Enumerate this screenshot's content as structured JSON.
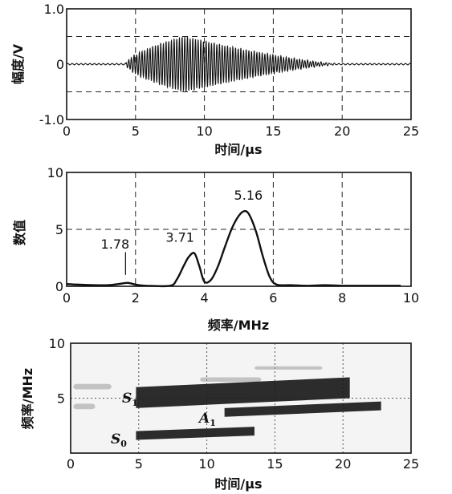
{
  "chart_data": [
    {
      "type": "line",
      "name_hint": "waveform",
      "xlabel": "时间/μs",
      "ylabel": "幅度/V",
      "xlim": [
        0,
        25
      ],
      "ylim": [
        -1.0,
        1.0
      ],
      "xticks": [
        "0",
        "5",
        "10",
        "15",
        "20",
        "25"
      ],
      "yticks": [
        "1.0",
        "0",
        "-1.0"
      ],
      "grid": "dashed",
      "signal": {
        "description_values": "oscillating burst around 0 V",
        "start": 4.3,
        "end": 19.8,
        "peak_time": 8.5,
        "peak_amplitude": 0.5,
        "carrier_mhz": 5.16
      }
    },
    {
      "type": "line",
      "name_hint": "spectrum",
      "xlabel": "频率/MHz",
      "ylabel": "数值",
      "xlim": [
        0,
        10
      ],
      "ylim": [
        0,
        10
      ],
      "xticks": [
        "0",
        "2",
        "4",
        "6",
        "8",
        "10"
      ],
      "yticks": [
        "10",
        "5",
        "0"
      ],
      "grid": "dashed",
      "x": [
        0,
        0.3,
        0.8,
        1.2,
        1.5,
        1.78,
        2.0,
        2.3,
        3.0,
        3.2,
        3.4,
        3.55,
        3.71,
        3.85,
        4.0,
        4.2,
        4.4,
        4.6,
        4.8,
        5.0,
        5.16,
        5.3,
        5.5,
        5.7,
        5.9,
        6.1,
        6.5,
        7.0,
        7.5,
        8.0,
        9.0,
        9.7
      ],
      "y": [
        0.2,
        0.15,
        0.1,
        0.1,
        0.2,
        0.3,
        0.15,
        0.05,
        0.05,
        0.6,
        1.8,
        2.6,
        2.9,
        1.8,
        0.4,
        0.6,
        1.8,
        3.5,
        5.1,
        6.2,
        6.6,
        6.3,
        4.8,
        2.6,
        0.8,
        0.15,
        0.1,
        0.05,
        0.1,
        0.05,
        0.05,
        0.05
      ],
      "annotations": [
        {
          "x": 1.78,
          "text": "1.78"
        },
        {
          "x": 3.71,
          "text": "3.71"
        },
        {
          "x": 5.16,
          "text": "5.16"
        }
      ]
    },
    {
      "type": "heatmap",
      "name_hint": "time-frequency",
      "xlabel": "时间/μs",
      "ylabel": "频率/MHz",
      "xlim": [
        0,
        25
      ],
      "ylim": [
        0,
        10
      ],
      "xticks": [
        "0",
        "5",
        "10",
        "15",
        "20",
        "25"
      ],
      "yticks": [
        "10",
        "5"
      ],
      "grid": "dotted",
      "bands": [
        {
          "label": "S",
          "sub": "1",
          "t": [
            4.8,
            20.5
          ],
          "f": [
            4.1,
            6.0
          ]
        },
        {
          "label": "A",
          "sub": "1",
          "t": [
            11.3,
            22.8
          ],
          "f": [
            3.3,
            4.1
          ]
        },
        {
          "label": "S",
          "sub": "0",
          "t": [
            4.8,
            13.5
          ],
          "f": [
            1.2,
            2.0
          ]
        }
      ],
      "mode_labels": [
        {
          "label": "S",
          "sub": "1"
        },
        {
          "label": "A",
          "sub": "1"
        },
        {
          "label": "S",
          "sub": "0"
        }
      ]
    }
  ]
}
